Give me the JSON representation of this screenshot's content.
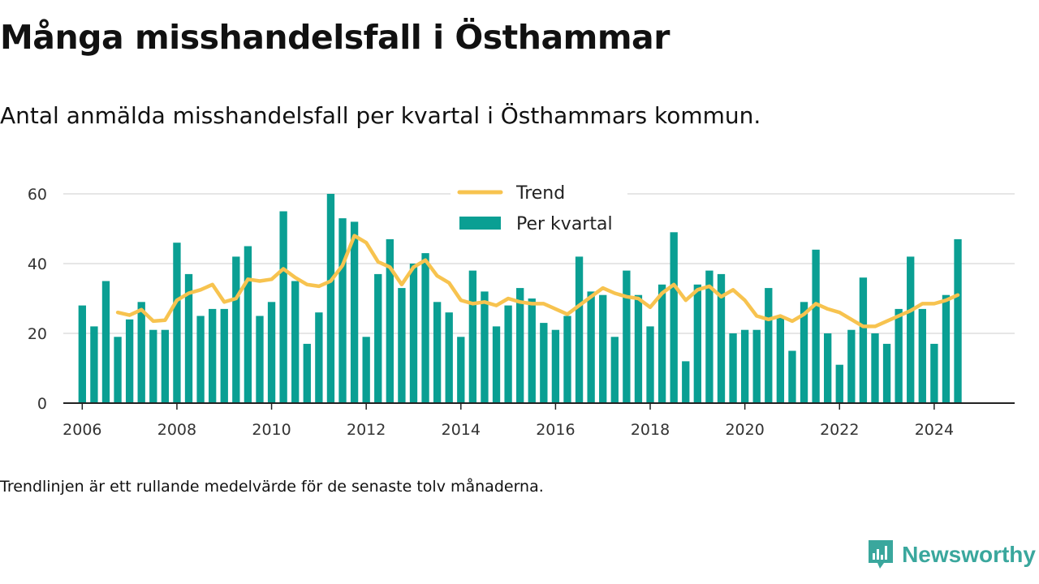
{
  "header": {
    "title": "Många misshandelsfall i Östhammar",
    "subtitle": "Antal anmälda misshandelsfall per kvartal i Östhammars kommun."
  },
  "footer": {
    "note": "Trendlinjen är ett rullande medelvärde för de senaste tolv månaderna.",
    "brand": "Newsworthy"
  },
  "colors": {
    "bar": "#0a9f93",
    "trend": "#f7c34f",
    "grid": "#dddddd",
    "axis": "#222222",
    "brand": "#3aa79d"
  },
  "chart_data": {
    "type": "bar",
    "xlim": [
      2005.6,
      2025.7
    ],
    "ylim": [
      0,
      60
    ],
    "grid": true,
    "legend_position": "top-center",
    "xticks": [
      2006,
      2008,
      2010,
      2012,
      2014,
      2016,
      2018,
      2020,
      2022,
      2024
    ],
    "yticks": [
      0,
      20,
      40,
      60
    ],
    "series": [
      {
        "name": "Per kvartal",
        "type": "bar",
        "x": [
          2006.0,
          2006.25,
          2006.5,
          2006.75,
          2007.0,
          2007.25,
          2007.5,
          2007.75,
          2008.0,
          2008.25,
          2008.5,
          2008.75,
          2009.0,
          2009.25,
          2009.5,
          2009.75,
          2010.0,
          2010.25,
          2010.5,
          2010.75,
          2011.0,
          2011.25,
          2011.5,
          2011.75,
          2012.0,
          2012.25,
          2012.5,
          2012.75,
          2013.0,
          2013.25,
          2013.5,
          2013.75,
          2014.0,
          2014.25,
          2014.5,
          2014.75,
          2015.0,
          2015.25,
          2015.5,
          2015.75,
          2016.0,
          2016.25,
          2016.5,
          2016.75,
          2017.0,
          2017.25,
          2017.5,
          2017.75,
          2018.0,
          2018.25,
          2018.5,
          2018.75,
          2019.0,
          2019.25,
          2019.5,
          2019.75,
          2020.0,
          2020.25,
          2020.5,
          2020.75,
          2021.0,
          2021.25,
          2021.5,
          2021.75,
          2022.0,
          2022.25,
          2022.5,
          2022.75,
          2023.0,
          2023.25,
          2023.5,
          2023.75,
          2024.0,
          2024.25,
          2024.5
        ],
        "values": [
          28,
          22,
          35,
          19,
          24,
          29,
          21,
          21,
          46,
          37,
          25,
          27,
          27,
          42,
          45,
          25,
          29,
          55,
          35,
          17,
          26,
          60,
          53,
          52,
          19,
          37,
          47,
          33,
          40,
          43,
          29,
          26,
          19,
          38,
          32,
          22,
          28,
          33,
          30,
          23,
          21,
          25,
          42,
          32,
          31,
          19,
          38,
          31,
          22,
          34,
          49,
          12,
          34,
          38,
          37,
          20,
          21,
          21,
          33,
          25,
          15,
          29,
          44,
          20,
          11,
          21,
          36,
          20,
          17,
          27,
          42,
          27,
          17,
          31,
          47
        ]
      },
      {
        "name": "Trend",
        "type": "line",
        "x": [
          2006.75,
          2007.0,
          2007.25,
          2007.5,
          2007.75,
          2008.0,
          2008.25,
          2008.5,
          2008.75,
          2009.0,
          2009.25,
          2009.5,
          2009.75,
          2010.0,
          2010.25,
          2010.5,
          2010.75,
          2011.0,
          2011.25,
          2011.5,
          2011.75,
          2012.0,
          2012.25,
          2012.5,
          2012.75,
          2013.0,
          2013.25,
          2013.5,
          2013.75,
          2014.0,
          2014.25,
          2014.5,
          2014.75,
          2015.0,
          2015.25,
          2015.5,
          2015.75,
          2016.0,
          2016.25,
          2016.5,
          2016.75,
          2017.0,
          2017.25,
          2017.5,
          2017.75,
          2018.0,
          2018.25,
          2018.5,
          2018.75,
          2019.0,
          2019.25,
          2019.5,
          2019.75,
          2020.0,
          2020.25,
          2020.5,
          2020.75,
          2021.0,
          2021.25,
          2021.5,
          2021.75,
          2022.0,
          2022.25,
          2022.5,
          2022.75,
          2023.0,
          2023.25,
          2023.5,
          2023.75,
          2024.0,
          2024.25,
          2024.5
        ],
        "values": [
          26.0,
          25.2,
          26.8,
          23.5,
          23.8,
          29.5,
          31.5,
          32.5,
          34.0,
          29.0,
          30.0,
          35.5,
          35.0,
          35.5,
          38.5,
          36.0,
          34.0,
          33.5,
          35.0,
          39.5,
          48.0,
          46.0,
          40.5,
          39.0,
          34.0,
          39.0,
          41.0,
          36.5,
          34.5,
          29.5,
          28.5,
          29.0,
          28.0,
          30.0,
          29.0,
          28.5,
          28.5,
          27.0,
          25.5,
          28.0,
          30.5,
          33.0,
          31.5,
          30.5,
          30.0,
          27.5,
          31.5,
          34.0,
          29.5,
          32.5,
          33.5,
          30.5,
          32.5,
          29.5,
          25.0,
          24.0,
          25.0,
          23.5,
          25.5,
          28.5,
          27.0,
          26.0,
          24.0,
          22.0,
          22.0,
          23.5,
          25.0,
          26.5,
          28.5,
          28.5,
          29.5,
          31.0
        ]
      }
    ]
  }
}
